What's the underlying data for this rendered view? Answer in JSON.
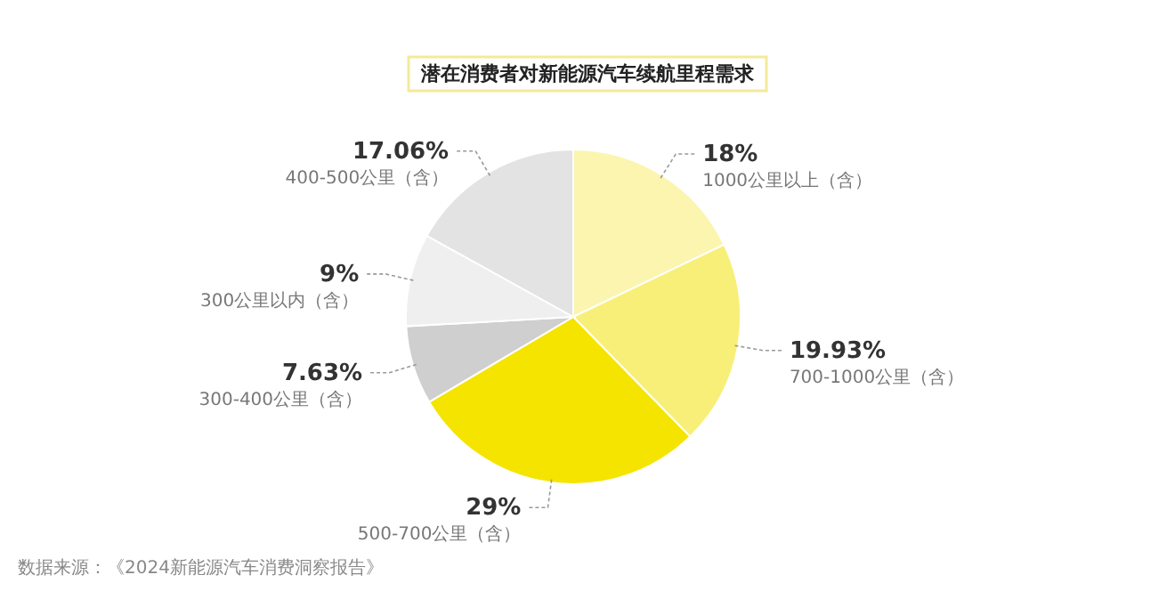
{
  "chart_data": {
    "type": "pie",
    "title": "潜在消费者对新能源汽车续航里程需求",
    "categories": [
      "1000公里以上（含）",
      "700-1000公里（含）",
      "500-700公里（含）",
      "300-400公里（含）",
      "300公里以内（含）",
      "400-500公里（含）"
    ],
    "values": [
      18,
      19.93,
      29,
      7.63,
      9,
      17.06
    ],
    "value_labels": [
      "18%",
      "19.93%",
      "29%",
      "7.63%",
      "9%",
      "17.06%"
    ],
    "colors": [
      "#fbf5b0",
      "#f8ef78",
      "#f5e400",
      "#cfcfcf",
      "#efefef",
      "#e3e3e3"
    ],
    "annotations": [
      "数据来源：《2024新能源汽车消费洞察报告》"
    ]
  }
}
